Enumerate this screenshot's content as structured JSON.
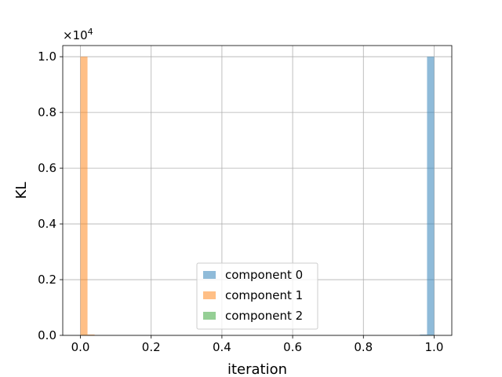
{
  "chart_data": {
    "type": "bar",
    "xlabel": "iteration",
    "ylabel": "KL",
    "y_scale_label": "×10",
    "y_scale_exponent": "4",
    "xlim": [
      -0.05,
      1.05
    ],
    "ylim": [
      0,
      10400
    ],
    "x_ticks": [
      0.0,
      0.2,
      0.4,
      0.6,
      0.8,
      1.0
    ],
    "x_tick_labels": [
      "0.0",
      "0.2",
      "0.4",
      "0.6",
      "0.8",
      "1.0"
    ],
    "y_ticks": [
      0,
      2000,
      4000,
      6000,
      8000,
      10000
    ],
    "y_tick_labels": [
      "0.0",
      "0.2",
      "0.4",
      "0.6",
      "0.8",
      "1.0"
    ],
    "grid": true,
    "legend_position": "lower-center",
    "bin_width": 0.02,
    "series": [
      {
        "name": "component 0",
        "color": "#1f77b4",
        "opacity": 0.5,
        "bins": [
          {
            "x": 0.98,
            "value": 10000
          },
          {
            "x": 0.96,
            "value": 30
          }
        ]
      },
      {
        "name": "component 1",
        "color": "#ff7f0e",
        "opacity": 0.5,
        "bins": [
          {
            "x": 0.0,
            "value": 10000
          },
          {
            "x": 0.02,
            "value": 30
          }
        ]
      },
      {
        "name": "component 2",
        "color": "#2ca02c",
        "opacity": 0.5,
        "bins": [
          {
            "x": 0.0,
            "value": 5
          },
          {
            "x": 0.98,
            "value": 5
          }
        ]
      }
    ]
  }
}
